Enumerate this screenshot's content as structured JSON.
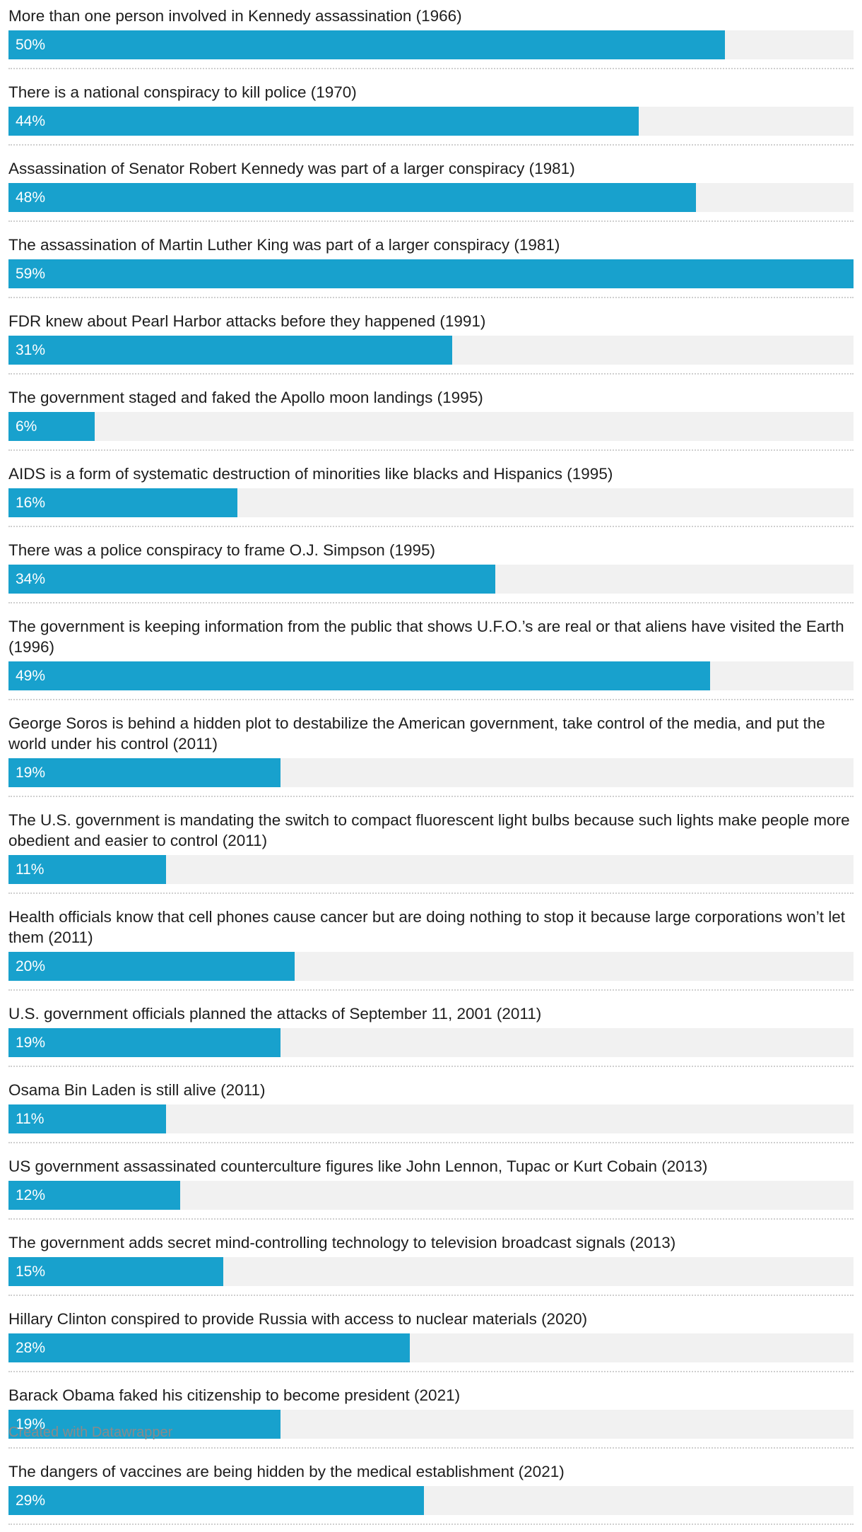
{
  "chart_data": {
    "type": "bar",
    "orientation": "horizontal",
    "xlim": [
      0,
      59
    ],
    "bar_color": "#18a1cd",
    "track_color": "#f1f1f1",
    "rows": [
      {
        "label": "More than one person involved in Kennedy assassination (1966)",
        "value": 50,
        "value_label": "50%"
      },
      {
        "label": "There is a national conspiracy to kill police (1970)",
        "value": 44,
        "value_label": "44%"
      },
      {
        "label": "Assassination of Senator Robert Kennedy was part of a larger conspiracy (1981)",
        "value": 48,
        "value_label": "48%"
      },
      {
        "label": "The assassination of Martin Luther King was part of a larger conspiracy (1981)",
        "value": 59,
        "value_label": "59%"
      },
      {
        "label": "FDR knew about Pearl Harbor attacks before they happened (1991)",
        "value": 31,
        "value_label": "31%"
      },
      {
        "label": "The government staged and faked the Apollo moon landings (1995)",
        "value": 6,
        "value_label": "6%"
      },
      {
        "label": "AIDS is a form of systematic destruction of minorities like blacks and Hispanics (1995)",
        "value": 16,
        "value_label": "16%"
      },
      {
        "label": "There was a police conspiracy to frame O.J. Simpson (1995)",
        "value": 34,
        "value_label": "34%"
      },
      {
        "label": "The government is keeping information from the public that shows U.F.O.’s are real or that aliens have visited the Earth (1996)",
        "value": 49,
        "value_label": "49%"
      },
      {
        "label": "George Soros is behind a hidden plot to destabilize the American government, take control of the media, and put the world under his control (2011)",
        "value": 19,
        "value_label": "19%"
      },
      {
        "label": "The U.S. government is mandating the switch to compact fluorescent light bulbs because such lights make people more obedient and easier to control (2011)",
        "value": 11,
        "value_label": "11%"
      },
      {
        "label": "Health officials know that cell phones cause cancer but are doing nothing to stop it because large corporations won’t let them (2011)",
        "value": 20,
        "value_label": "20%"
      },
      {
        "label": "U.S. government officials planned the attacks of September 11, 2001 (2011)",
        "value": 19,
        "value_label": "19%"
      },
      {
        "label": "Osama Bin Laden is still alive (2011)",
        "value": 11,
        "value_label": "11%"
      },
      {
        "label": "US government assassinated counterculture figures like John Lennon, Tupac or Kurt Cobain (2013)",
        "value": 12,
        "value_label": "12%"
      },
      {
        "label": "The government adds secret mind-controlling technology to television broadcast signals (2013)",
        "value": 15,
        "value_label": "15%"
      },
      {
        "label": "Hillary Clinton conspired to provide Russia with access to nuclear materials (2020)",
        "value": 28,
        "value_label": "28%"
      },
      {
        "label": "Barack Obama faked his citizenship to become president (2021)",
        "value": 19,
        "value_label": "19%"
      },
      {
        "label": "The dangers of vaccines are being hidden by the medical establishment (2021)",
        "value": 29,
        "value_label": "29%"
      }
    ]
  },
  "footer": {
    "credit": "Created with Datawrapper"
  }
}
